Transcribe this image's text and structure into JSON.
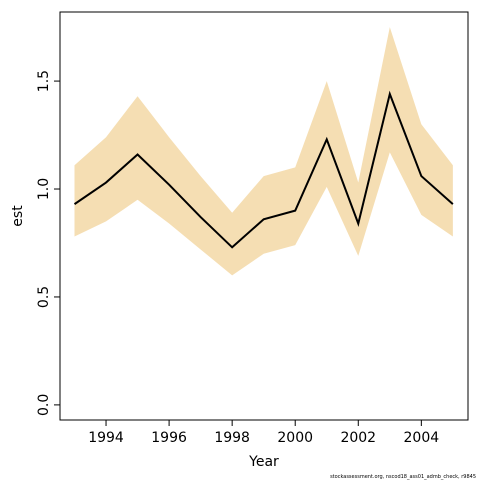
{
  "chart_data": {
    "type": "line",
    "xlabel": "Year",
    "ylabel": "est",
    "footer": "stockassessment.org, nscod18_ass01_admb_check, r9845",
    "x": [
      1993,
      1994,
      1995,
      1996,
      1997,
      1998,
      1999,
      2000,
      2001,
      2002,
      2003,
      2004,
      2005
    ],
    "series": [
      {
        "name": "est",
        "color": "#000000",
        "values": [
          0.93,
          1.03,
          1.16,
          1.02,
          0.87,
          0.73,
          0.86,
          0.9,
          1.23,
          0.84,
          1.44,
          1.06,
          0.93
        ]
      }
    ],
    "band": {
      "color": "#f5deb3",
      "upper": [
        1.11,
        1.24,
        1.43,
        1.24,
        1.06,
        0.89,
        1.06,
        1.1,
        1.5,
        1.03,
        1.75,
        1.3,
        1.11
      ],
      "lower": [
        0.78,
        0.85,
        0.95,
        0.84,
        0.72,
        0.6,
        0.7,
        0.74,
        1.01,
        0.69,
        1.17,
        0.88,
        0.78
      ]
    },
    "xlim": [
      1992.54,
      2005.48
    ],
    "ylim": [
      -0.07,
      1.82
    ],
    "xticks": [
      1994,
      1996,
      1998,
      2000,
      2002,
      2004
    ],
    "yticks": [
      {
        "value": 0,
        "label": "0.0"
      },
      0.5,
      {
        "value": 1,
        "label": "1.0"
      },
      1.5
    ]
  }
}
